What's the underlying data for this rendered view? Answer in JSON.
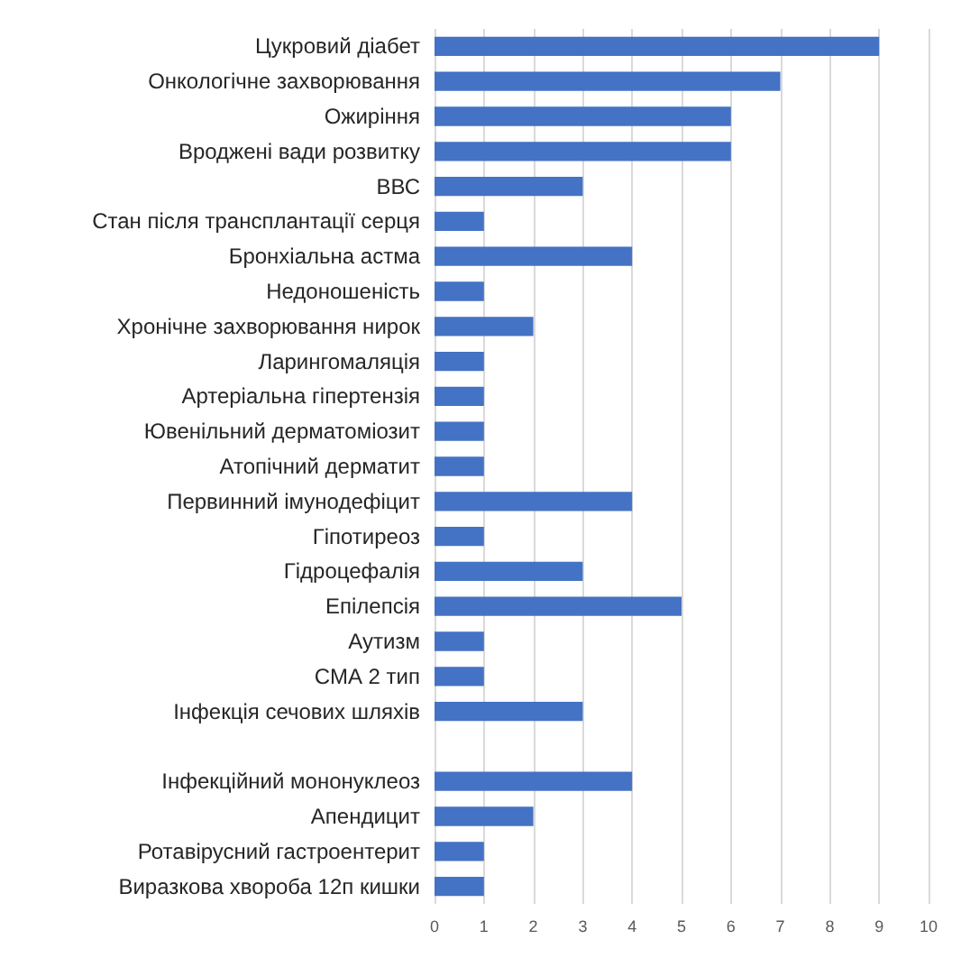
{
  "chart_data": {
    "type": "bar",
    "orientation": "horizontal",
    "categories": [
      "Цукровий діабет",
      "Онкологічне захворювання",
      "Ожиріння",
      "Вроджені вади розвитку",
      "ВВС",
      "Стан після трансплантації серця",
      "Бронхіальна астма",
      "Недоношеність",
      "Хронічне захворювання нирок",
      "Ларингомаляція",
      "Артеріальна гіпертензія",
      "Ювенільний дерматоміозит",
      "Атопічний дерматит",
      "Первинний імунодефіцит",
      "Гіпотиреоз",
      "Гідроцефалія",
      "Епілепсія",
      "Аутизм",
      "СМА 2 тип",
      "Інфекція сечових шляхів",
      null,
      "Інфекційний мононуклеоз",
      "Апендицит",
      "Ротавірусний гастроентерит",
      "Виразкова хвороба 12п кишки"
    ],
    "values": [
      9,
      7,
      6,
      6,
      3,
      1,
      4,
      1,
      2,
      1,
      1,
      1,
      1,
      4,
      1,
      3,
      5,
      1,
      1,
      3,
      null,
      4,
      2,
      1,
      1
    ],
    "color": "#4472c4",
    "xlim": [
      0,
      10
    ],
    "xticks": [
      0,
      1,
      2,
      3,
      4,
      5,
      6,
      7,
      8,
      9,
      10
    ],
    "grid": "x"
  }
}
